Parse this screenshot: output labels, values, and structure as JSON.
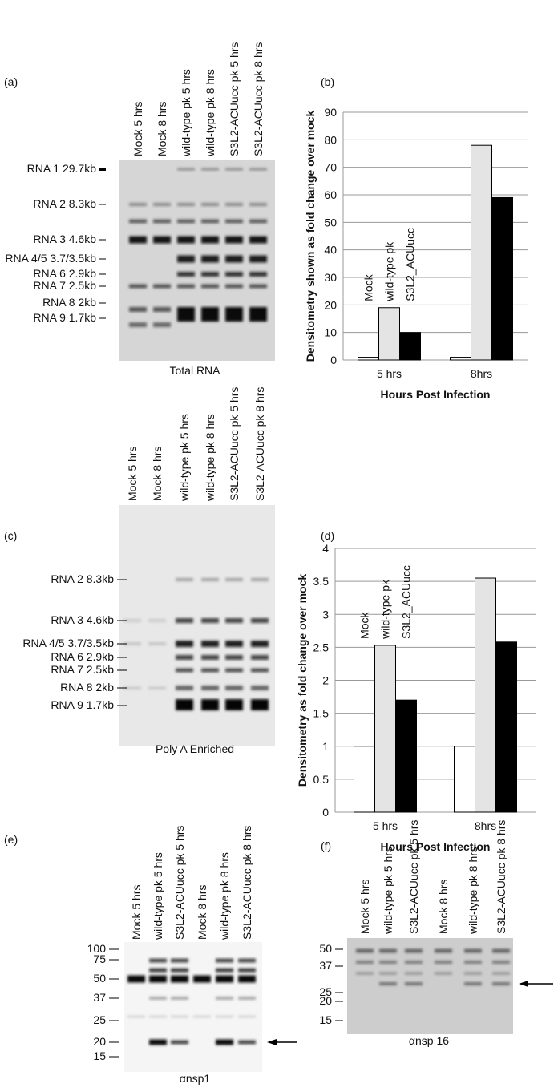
{
  "panels": {
    "a": {
      "label": "(a)",
      "lanes": [
        "Mock 5 hrs",
        "Mock 8 hrs",
        "wild-type pk 5 hrs",
        "wild-type pk 8 hrs",
        "S3L2-ACUucc pk 5 hrs",
        "S3L2-ACUucc pk 8 hrs"
      ],
      "markers": [
        "RNA 1 29.7kb",
        "RNA 2 8.3kb",
        "RNA 3 4.6kb",
        "RNA 4/5 3.7/3.5kb",
        "RNA 6 2.9kb",
        "RNA 7 2.5kb",
        "RNA 8 2kb",
        "RNA 9 1.7kb"
      ],
      "caption": "Total RNA"
    },
    "c": {
      "label": "(c)",
      "lanes": [
        "Mock 5 hrs",
        "Mock 8 hrs",
        "wild-type pk 5 hrs",
        "wild-type pk 8 hrs",
        "S3L2-ACUucc pk 5 hrs",
        "S3L2-ACUucc pk 8 hrs"
      ],
      "markers": [
        "RNA 2 8.3kb",
        "RNA 3 4.6kb",
        "RNA 4/5 3.7/3.5kb",
        "RNA 6 2.9kb",
        "RNA 7 2.5kb",
        "RNA 8 2kb",
        "RNA 9 1.7kb"
      ],
      "caption": "Poly A Enriched"
    },
    "e": {
      "label": "(e)",
      "lanes": [
        "Mock 5 hrs",
        "wild-type pk 5 hrs",
        "S3L2-ACUucc pk 5 hrs",
        "Mock 8 hrs",
        "wild-type pk 8 hrs",
        "S3L2-ACUucc pk 8 hrs"
      ],
      "markers": [
        "100",
        "75",
        "50",
        "37",
        "25",
        "20",
        "15"
      ],
      "caption": "αnsp1"
    },
    "f": {
      "label": "(f)",
      "lanes": [
        "Mock 5 hrs",
        "wild-type pk 5 hrs",
        "S3L2-ACUucc pk 5 hrs",
        "Mock 8 hrs",
        "wild-type pk 8 hrs",
        "S3L2-ACUucc pk 8 hrs"
      ],
      "markers": [
        "50",
        "37",
        "25",
        "20",
        "15"
      ],
      "caption": "αnsp 16"
    }
  },
  "chart_data": [
    {
      "type": "bar",
      "label": "(b)",
      "y_label": "Densitometry shown as fold change over mock",
      "x_label": "Hours Post Infection",
      "categories": [
        "5 hrs",
        "8hrs"
      ],
      "ylim": [
        0,
        90
      ],
      "yticks": [
        0,
        10,
        20,
        30,
        40,
        50,
        60,
        70,
        80,
        90
      ],
      "grid": true,
      "series": [
        {
          "name": "Mock",
          "color": "#ffffff",
          "values": [
            1,
            1
          ]
        },
        {
          "name": "wild-type pk",
          "color": "#e4e4e4",
          "values": [
            19,
            78
          ]
        },
        {
          "name": "S3L2_ACUucc",
          "color": "#000000",
          "values": [
            10,
            59
          ]
        }
      ]
    },
    {
      "type": "bar",
      "label": "(d)",
      "y_label": "Densitometry as fold change over mock",
      "x_label": "Hours Post Infection",
      "categories": [
        "5 hrs",
        "8hrs"
      ],
      "ylim": [
        0,
        4
      ],
      "yticks": [
        0,
        0.5,
        1,
        1.5,
        2,
        2.5,
        3,
        3.5,
        4
      ],
      "grid": true,
      "series": [
        {
          "name": "Mock",
          "color": "#ffffff",
          "values": [
            1,
            1
          ]
        },
        {
          "name": "wild-type pk",
          "color": "#e4e4e4",
          "values": [
            2.53,
            3.55
          ]
        },
        {
          "name": "S3L2_ACUucc",
          "color": "#000000",
          "values": [
            1.7,
            2.58
          ]
        }
      ]
    }
  ]
}
